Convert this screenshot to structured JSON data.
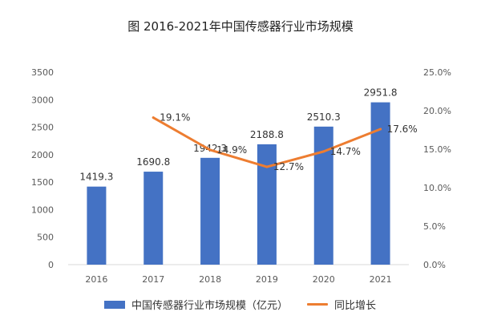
{
  "chart_data": {
    "type": "bar",
    "title": "图 2016-2021年中国传感器行业市场规模",
    "categories": [
      "2016",
      "2017",
      "2018",
      "2019",
      "2020",
      "2021"
    ],
    "series": [
      {
        "name": "中国传感器行业市场规模（亿元）",
        "type": "bar",
        "axis": "left",
        "values": [
          1419.3,
          1690.8,
          1942.3,
          2188.8,
          2510.3,
          2951.8
        ],
        "labels": [
          "1419.3",
          "1690.8",
          "1942.3",
          "2188.8",
          "2510.3",
          "2951.8"
        ]
      },
      {
        "name": "同比增长",
        "type": "line",
        "axis": "right",
        "x": [
          "2017",
          "2018",
          "2019",
          "2020",
          "2021"
        ],
        "values": [
          19.1,
          14.9,
          12.7,
          14.7,
          17.6
        ],
        "labels": [
          "19.1%",
          "14.9%",
          "12.7%",
          "14.7%",
          "17.6%"
        ]
      }
    ],
    "y_left": {
      "ylim": [
        0,
        3500
      ],
      "ticks": [
        "0",
        "500",
        "1000",
        "1500",
        "2000",
        "2500",
        "3000",
        "3500"
      ]
    },
    "y_right": {
      "ylim": [
        0,
        25
      ],
      "ticks": [
        "0.0%",
        "5.0%",
        "10.0%",
        "15.0%",
        "20.0%",
        "25.0%"
      ]
    },
    "grid": false,
    "legend_position": "bottom",
    "colors": {
      "bar": "#4472C4",
      "line": "#ED7D31"
    }
  }
}
